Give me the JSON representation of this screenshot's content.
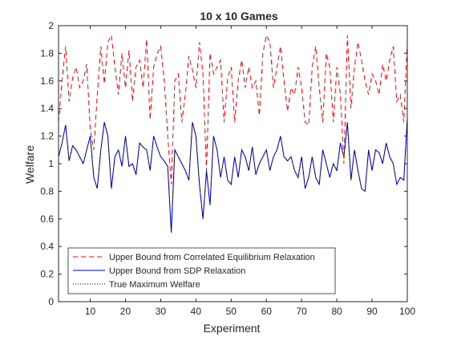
{
  "chart_data": {
    "type": "line",
    "title": "10 x 10 Games",
    "xlabel": "Experiment",
    "ylabel": "Welfare",
    "xlim": [
      1,
      100
    ],
    "ylim": [
      0,
      2
    ],
    "xticks": [
      10,
      20,
      30,
      40,
      50,
      60,
      70,
      80,
      90,
      100
    ],
    "yticks": [
      0,
      0.2,
      0.4,
      0.6,
      0.8,
      1,
      1.2,
      1.4,
      1.6,
      1.8,
      2
    ],
    "xtick_labels": [
      "10",
      "20",
      "30",
      "40",
      "50",
      "60",
      "70",
      "80",
      "90",
      "100"
    ],
    "ytick_labels": [
      "0",
      "0.2",
      "0.4",
      "0.6",
      "0.8",
      "1",
      "1.2",
      "1.4",
      "1.6",
      "1.8",
      "2"
    ],
    "grid": false,
    "legend_position": "bottom-left",
    "x": [
      1,
      2,
      3,
      4,
      5,
      6,
      7,
      8,
      9,
      10,
      11,
      12,
      13,
      14,
      15,
      16,
      17,
      18,
      19,
      20,
      21,
      22,
      23,
      24,
      25,
      26,
      27,
      28,
      29,
      30,
      31,
      32,
      33,
      34,
      35,
      36,
      37,
      38,
      39,
      40,
      41,
      42,
      43,
      44,
      45,
      46,
      47,
      48,
      49,
      50,
      51,
      52,
      53,
      54,
      55,
      56,
      57,
      58,
      59,
      60,
      61,
      62,
      63,
      64,
      65,
      66,
      67,
      68,
      69,
      70,
      71,
      72,
      73,
      74,
      75,
      76,
      77,
      78,
      79,
      80,
      81,
      82,
      83,
      84,
      85,
      86,
      87,
      88,
      89,
      90,
      91,
      92,
      93,
      94,
      95,
      96,
      97,
      98,
      99,
      100
    ],
    "series": [
      {
        "name": "Upper Bound from Correlated Equilibrium Relaxation",
        "color": "#ff0000",
        "dash": "dashed",
        "values": [
          1.3,
          1.6,
          1.85,
          1.45,
          1.62,
          1.7,
          1.55,
          1.6,
          1.72,
          1.25,
          1.1,
          1.5,
          1.85,
          1.58,
          1.88,
          1.93,
          1.7,
          1.5,
          1.8,
          1.55,
          1.82,
          1.45,
          1.7,
          1.75,
          1.55,
          1.9,
          1.32,
          1.7,
          1.8,
          1.85,
          1.6,
          1.2,
          0.85,
          1.6,
          1.65,
          1.3,
          1.5,
          1.78,
          1.68,
          1.55,
          1.88,
          1.65,
          0.95,
          1.8,
          1.65,
          1.7,
          1.75,
          1.3,
          1.62,
          1.7,
          1.3,
          1.6,
          1.75,
          1.55,
          1.7,
          1.55,
          1.6,
          1.35,
          1.8,
          1.93,
          1.88,
          1.55,
          1.7,
          1.85,
          1.6,
          1.38,
          1.55,
          1.5,
          1.7,
          1.55,
          1.3,
          1.28,
          1.7,
          1.85,
          1.55,
          1.3,
          1.8,
          1.7,
          1.3,
          1.7,
          1.5,
          1.0,
          1.93,
          1.4,
          1.7,
          1.88,
          1.75,
          1.6,
          1.5,
          1.65,
          1.6,
          1.5,
          1.72,
          1.6,
          1.75,
          1.85,
          1.45,
          1.5,
          1.3,
          1.88
        ]
      },
      {
        "name": "Upper Bound from SDP Relaxation",
        "color": "#0000c8",
        "dash": "solid",
        "values": [
          1.05,
          1.15,
          1.28,
          1.02,
          1.13,
          1.1,
          1.05,
          1.0,
          1.1,
          1.2,
          0.9,
          0.82,
          1.1,
          1.3,
          1.2,
          0.82,
          1.05,
          1.1,
          0.98,
          1.2,
          0.98,
          1.0,
          0.92,
          1.15,
          1.12,
          1.1,
          0.95,
          1.2,
          1.12,
          1.05,
          1.02,
          0.98,
          0.5,
          1.1,
          1.05,
          1.0,
          0.95,
          0.88,
          1.3,
          1.2,
          0.85,
          0.6,
          0.95,
          0.7,
          1.2,
          1.1,
          0.9,
          1.05,
          0.88,
          0.85,
          1.05,
          0.9,
          1.1,
          1.05,
          0.95,
          1.12,
          0.92,
          1.0,
          1.05,
          1.1,
          0.95,
          1.05,
          1.1,
          1.2,
          1.05,
          1.02,
          1.05,
          0.95,
          0.9,
          1.05,
          0.82,
          0.9,
          1.05,
          0.9,
          0.85,
          1.1,
          1.0,
          0.9,
          1.0,
          0.95,
          1.15,
          1.05,
          1.3,
          0.88,
          1.1,
          0.95,
          0.82,
          0.8,
          1.1,
          0.95,
          1.1,
          1.08,
          1.0,
          1.15,
          1.05,
          1.0,
          0.85,
          0.9,
          0.88,
          1.33
        ]
      },
      {
        "name": "True Maximum Welfare",
        "color": "#000000",
        "dash": "dotted",
        "values": [
          1.05,
          1.15,
          1.28,
          1.02,
          1.13,
          1.1,
          1.05,
          1.0,
          1.1,
          1.2,
          0.9,
          0.82,
          1.1,
          1.3,
          1.2,
          0.82,
          1.05,
          1.1,
          0.98,
          1.2,
          0.98,
          1.0,
          0.92,
          1.15,
          1.12,
          1.1,
          0.95,
          1.2,
          1.12,
          1.05,
          1.02,
          0.98,
          0.5,
          1.1,
          1.05,
          1.0,
          0.95,
          0.88,
          1.3,
          1.2,
          0.85,
          0.6,
          0.95,
          0.7,
          1.2,
          1.1,
          0.9,
          1.05,
          0.88,
          0.85,
          1.05,
          0.9,
          1.1,
          1.05,
          0.95,
          1.12,
          0.92,
          1.0,
          1.05,
          1.1,
          0.95,
          1.05,
          1.1,
          1.2,
          1.05,
          1.02,
          1.05,
          0.95,
          0.9,
          1.05,
          0.82,
          0.9,
          1.05,
          0.9,
          0.85,
          1.1,
          1.0,
          0.9,
          1.0,
          0.95,
          1.15,
          1.05,
          1.3,
          0.88,
          1.1,
          0.95,
          0.82,
          0.8,
          1.1,
          0.95,
          1.1,
          1.08,
          1.0,
          1.15,
          1.05,
          1.0,
          0.85,
          0.9,
          0.88,
          1.33
        ]
      }
    ]
  }
}
